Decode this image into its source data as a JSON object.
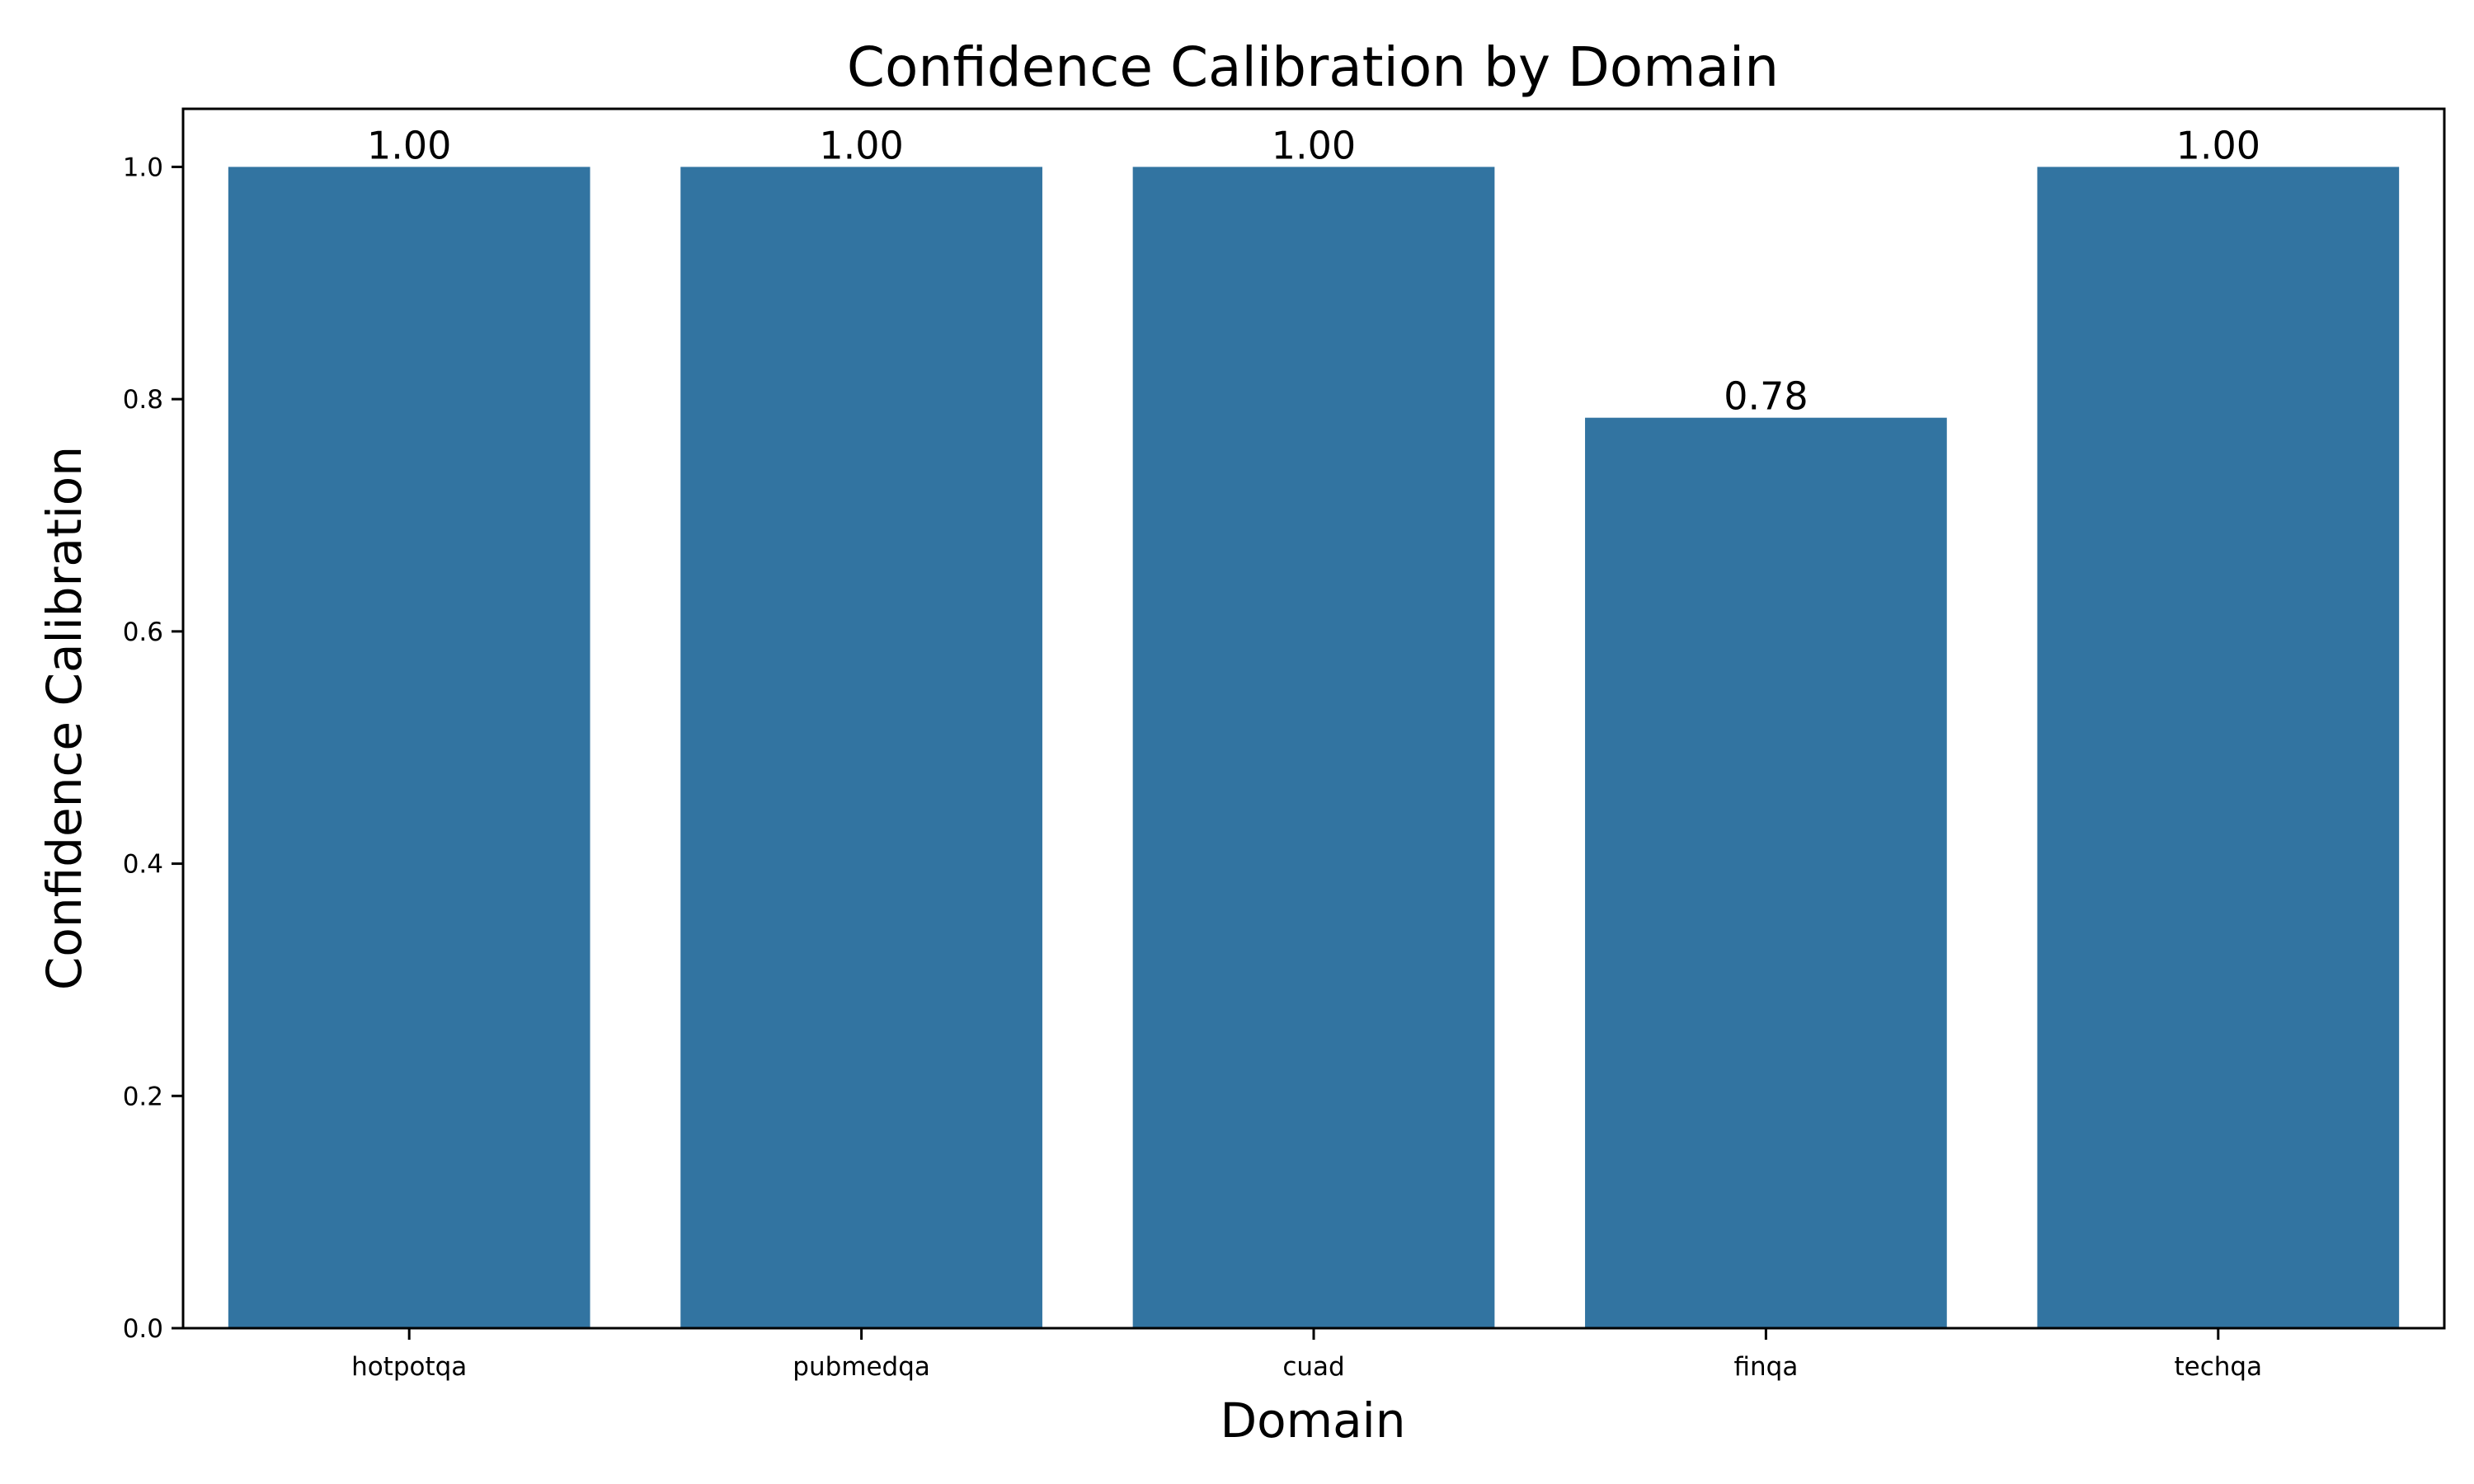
{
  "chart_data": {
    "type": "bar",
    "title": "Confidence Calibration by Domain",
    "xlabel": "Domain",
    "ylabel": "Confidence Calibration",
    "categories": [
      "hotpotqa",
      "pubmedqa",
      "cuad",
      "finqa",
      "techqa"
    ],
    "values": [
      1.0,
      1.0,
      1.0,
      0.784,
      1.0
    ],
    "value_labels": [
      "1.00",
      "1.00",
      "1.00",
      "0.78",
      "1.00"
    ],
    "ylim": [
      0,
      1.05
    ],
    "yticks": [
      0.0,
      0.2,
      0.4,
      0.6,
      0.8,
      1.0
    ],
    "ytick_labels": [
      "0.0",
      "0.2",
      "0.4",
      "0.6",
      "0.8",
      "1.0"
    ],
    "grid": false,
    "legend": "none",
    "bar_color": "#3274a1"
  }
}
